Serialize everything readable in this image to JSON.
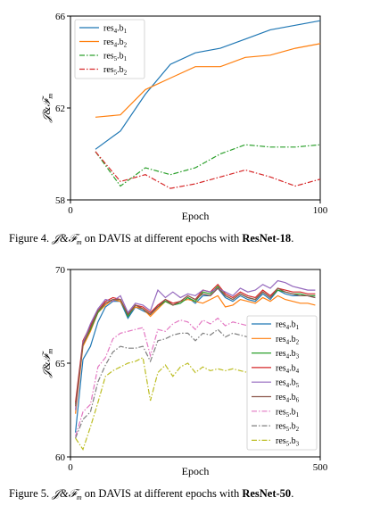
{
  "chart_data": [
    {
      "type": "line",
      "xlabel": "Epoch",
      "ylabel": "J&F_m",
      "xlim": [
        0,
        100
      ],
      "ylim": [
        58,
        66
      ],
      "xticks": [
        0,
        100
      ],
      "yticks": [
        58,
        62,
        66
      ],
      "legend_position": "upper-left",
      "grid": false,
      "x": [
        10,
        20,
        30,
        40,
        50,
        60,
        70,
        80,
        90,
        100
      ],
      "series": [
        {
          "name": "res4.b1",
          "legend": [
            "res",
            "4",
            ".b",
            "1"
          ],
          "color": "#1f77b4",
          "dash": "solid",
          "values": [
            60.2,
            61.0,
            62.6,
            63.9,
            64.4,
            64.6,
            65.0,
            65.4,
            65.6,
            65.8
          ]
        },
        {
          "name": "res4.b2",
          "legend": [
            "res",
            "4",
            ".b",
            "2"
          ],
          "color": "#ff7f0e",
          "dash": "solid",
          "values": [
            61.6,
            61.7,
            62.8,
            63.3,
            63.8,
            63.8,
            64.2,
            64.3,
            64.6,
            64.8
          ]
        },
        {
          "name": "res5.b1",
          "legend": [
            "res",
            "5",
            ".b",
            "1"
          ],
          "color": "#2ca02c",
          "dash": "dashdot",
          "values": [
            60.1,
            58.6,
            59.4,
            59.1,
            59.4,
            60.0,
            60.4,
            60.3,
            60.3,
            60.4
          ]
        },
        {
          "name": "res5.b2",
          "legend": [
            "res",
            "5",
            ".b",
            "2"
          ],
          "color": "#d62728",
          "dash": "dashdot",
          "values": [
            60.1,
            58.8,
            59.1,
            58.5,
            58.7,
            59.0,
            59.3,
            59.0,
            58.6,
            58.9
          ]
        }
      ]
    },
    {
      "type": "line",
      "xlabel": "Epoch",
      "ylabel": "J&F_m",
      "xlim": [
        0,
        500
      ],
      "ylim": [
        60,
        70
      ],
      "xticks": [
        0,
        500
      ],
      "yticks": [
        60,
        65,
        70
      ],
      "legend_position": "right",
      "grid": false,
      "x": [
        10,
        25,
        40,
        55,
        70,
        85,
        100,
        115,
        130,
        145,
        160,
        175,
        190,
        205,
        220,
        235,
        250,
        265,
        280,
        295,
        310,
        325,
        340,
        355,
        370,
        385,
        400,
        415,
        430,
        445,
        460,
        475,
        490
      ],
      "series": [
        {
          "name": "res4.b1",
          "legend": [
            "res",
            "4",
            ".b",
            "1"
          ],
          "color": "#1f77b4",
          "dash": "solid",
          "values": [
            61.3,
            65.2,
            65.9,
            67.2,
            68.0,
            68.3,
            68.3,
            67.4,
            68.0,
            67.8,
            67.6,
            68.1,
            68.3,
            68.1,
            68.2,
            68.5,
            68.2,
            68.6,
            68.6,
            69.0,
            68.5,
            68.3,
            68.6,
            68.4,
            68.3,
            68.7,
            68.4,
            68.9,
            68.7,
            68.6,
            68.6,
            68.6,
            68.5
          ]
        },
        {
          "name": "res4.b2",
          "legend": [
            "res",
            "4",
            ".b",
            "2"
          ],
          "color": "#ff7f0e",
          "dash": "solid",
          "values": [
            62.3,
            65.9,
            66.7,
            67.7,
            68.1,
            68.4,
            68.3,
            67.6,
            68.0,
            67.9,
            67.5,
            67.9,
            68.3,
            68.1,
            68.3,
            68.4,
            68.3,
            68.2,
            68.4,
            68.6,
            68.0,
            68.1,
            68.4,
            68.3,
            68.2,
            68.5,
            68.3,
            68.6,
            68.4,
            68.3,
            68.2,
            68.2,
            68.1
          ]
        },
        {
          "name": "res4.b3",
          "legend": [
            "res",
            "4",
            ".b",
            "3"
          ],
          "color": "#2ca02c",
          "dash": "solid",
          "values": [
            62.8,
            66.0,
            66.8,
            67.7,
            68.2,
            68.4,
            68.4,
            67.5,
            68.1,
            67.9,
            67.6,
            68.0,
            68.3,
            68.1,
            68.2,
            68.5,
            68.3,
            68.8,
            68.7,
            69.1,
            68.6,
            68.4,
            68.7,
            68.5,
            68.4,
            68.8,
            68.5,
            68.9,
            68.8,
            68.7,
            68.7,
            68.6,
            68.6
          ]
        },
        {
          "name": "res4.b4",
          "legend": [
            "res",
            "4",
            ".b",
            "4"
          ],
          "color": "#d62728",
          "dash": "solid",
          "values": [
            62.9,
            66.2,
            67.0,
            67.8,
            68.3,
            68.5,
            68.4,
            67.6,
            68.1,
            68.0,
            67.7,
            68.1,
            68.4,
            68.2,
            68.3,
            68.6,
            68.4,
            68.9,
            68.8,
            69.2,
            68.7,
            68.5,
            68.8,
            68.6,
            68.5,
            68.9,
            68.6,
            69.0,
            68.9,
            68.8,
            68.8,
            68.7,
            68.7
          ]
        },
        {
          "name": "res4.b5",
          "legend": [
            "res",
            "4",
            ".b",
            "5"
          ],
          "color": "#9467bd",
          "dash": "solid",
          "values": [
            62.5,
            66.1,
            67.1,
            67.9,
            68.4,
            68.3,
            68.6,
            67.7,
            68.2,
            68.1,
            67.8,
            68.9,
            68.5,
            68.8,
            68.5,
            68.7,
            68.6,
            68.9,
            68.8,
            69.0,
            68.8,
            68.6,
            69.0,
            68.8,
            68.9,
            69.2,
            69.0,
            69.4,
            69.3,
            69.1,
            69.0,
            68.9,
            68.9
          ]
        },
        {
          "name": "res4.b6",
          "legend": [
            "res",
            "4",
            ".b",
            "6"
          ],
          "color": "#8c564b",
          "dash": "solid",
          "values": [
            62.7,
            66.0,
            66.9,
            67.8,
            68.2,
            68.4,
            68.4,
            67.6,
            68.1,
            67.9,
            67.6,
            68.0,
            68.4,
            68.1,
            68.3,
            68.6,
            68.4,
            68.7,
            68.6,
            69.0,
            68.6,
            68.4,
            68.7,
            68.5,
            68.4,
            68.8,
            68.5,
            69.0,
            68.8,
            68.7,
            68.6,
            68.6,
            68.5
          ]
        },
        {
          "name": "res5.b1",
          "legend": [
            "res",
            "5",
            ".b",
            "1"
          ],
          "color": "#e377c2",
          "dash": "dashdot",
          "values": [
            61.1,
            62.4,
            62.8,
            64.8,
            65.3,
            66.3,
            66.6,
            66.7,
            66.8,
            66.9,
            65.4,
            66.8,
            66.7,
            67.1,
            67.3,
            67.2,
            66.8,
            67.3,
            67.1,
            67.4,
            67.0,
            67.2,
            67.1,
            67.0,
            67.3,
            67.1,
            67.1,
            67.0,
            67.1,
            67.0,
            67.0,
            66.9,
            66.9
          ]
        },
        {
          "name": "res5.b2",
          "legend": [
            "res",
            "5",
            ".b",
            "2"
          ],
          "color": "#7f7f7f",
          "dash": "dashdot",
          "values": [
            61.0,
            62.0,
            62.4,
            64.0,
            64.9,
            65.6,
            65.9,
            65.8,
            65.8,
            65.9,
            65.1,
            66.2,
            66.3,
            66.5,
            66.6,
            66.6,
            66.2,
            66.6,
            66.5,
            66.8,
            66.4,
            66.6,
            66.5,
            66.4,
            66.7,
            66.5,
            66.5,
            66.4,
            66.5,
            66.4,
            66.4,
            66.3,
            66.3
          ]
        },
        {
          "name": "res5.b3",
          "legend": [
            "res",
            "5",
            ".b",
            "3"
          ],
          "color": "#bcbd22",
          "dash": "dashdot",
          "values": [
            61.0,
            60.4,
            61.6,
            62.9,
            64.3,
            64.6,
            64.8,
            65.0,
            65.1,
            65.3,
            63.0,
            64.5,
            64.9,
            64.3,
            64.8,
            65.0,
            64.5,
            64.8,
            64.6,
            64.7,
            64.6,
            64.7,
            64.6,
            64.5,
            64.7,
            64.6,
            64.6,
            64.5,
            64.6,
            64.6,
            64.5,
            64.5,
            64.6
          ]
        }
      ]
    }
  ],
  "captions": [
    {
      "label": "Figure 4.",
      "text_before": " on DAVIS at different epochs with ",
      "bold": "ResNet-18",
      "text_after": "."
    },
    {
      "label": "Figure 5.",
      "text_before": " on DAVIS at different epochs with ",
      "bold": "ResNet-50",
      "text_after": "."
    }
  ]
}
